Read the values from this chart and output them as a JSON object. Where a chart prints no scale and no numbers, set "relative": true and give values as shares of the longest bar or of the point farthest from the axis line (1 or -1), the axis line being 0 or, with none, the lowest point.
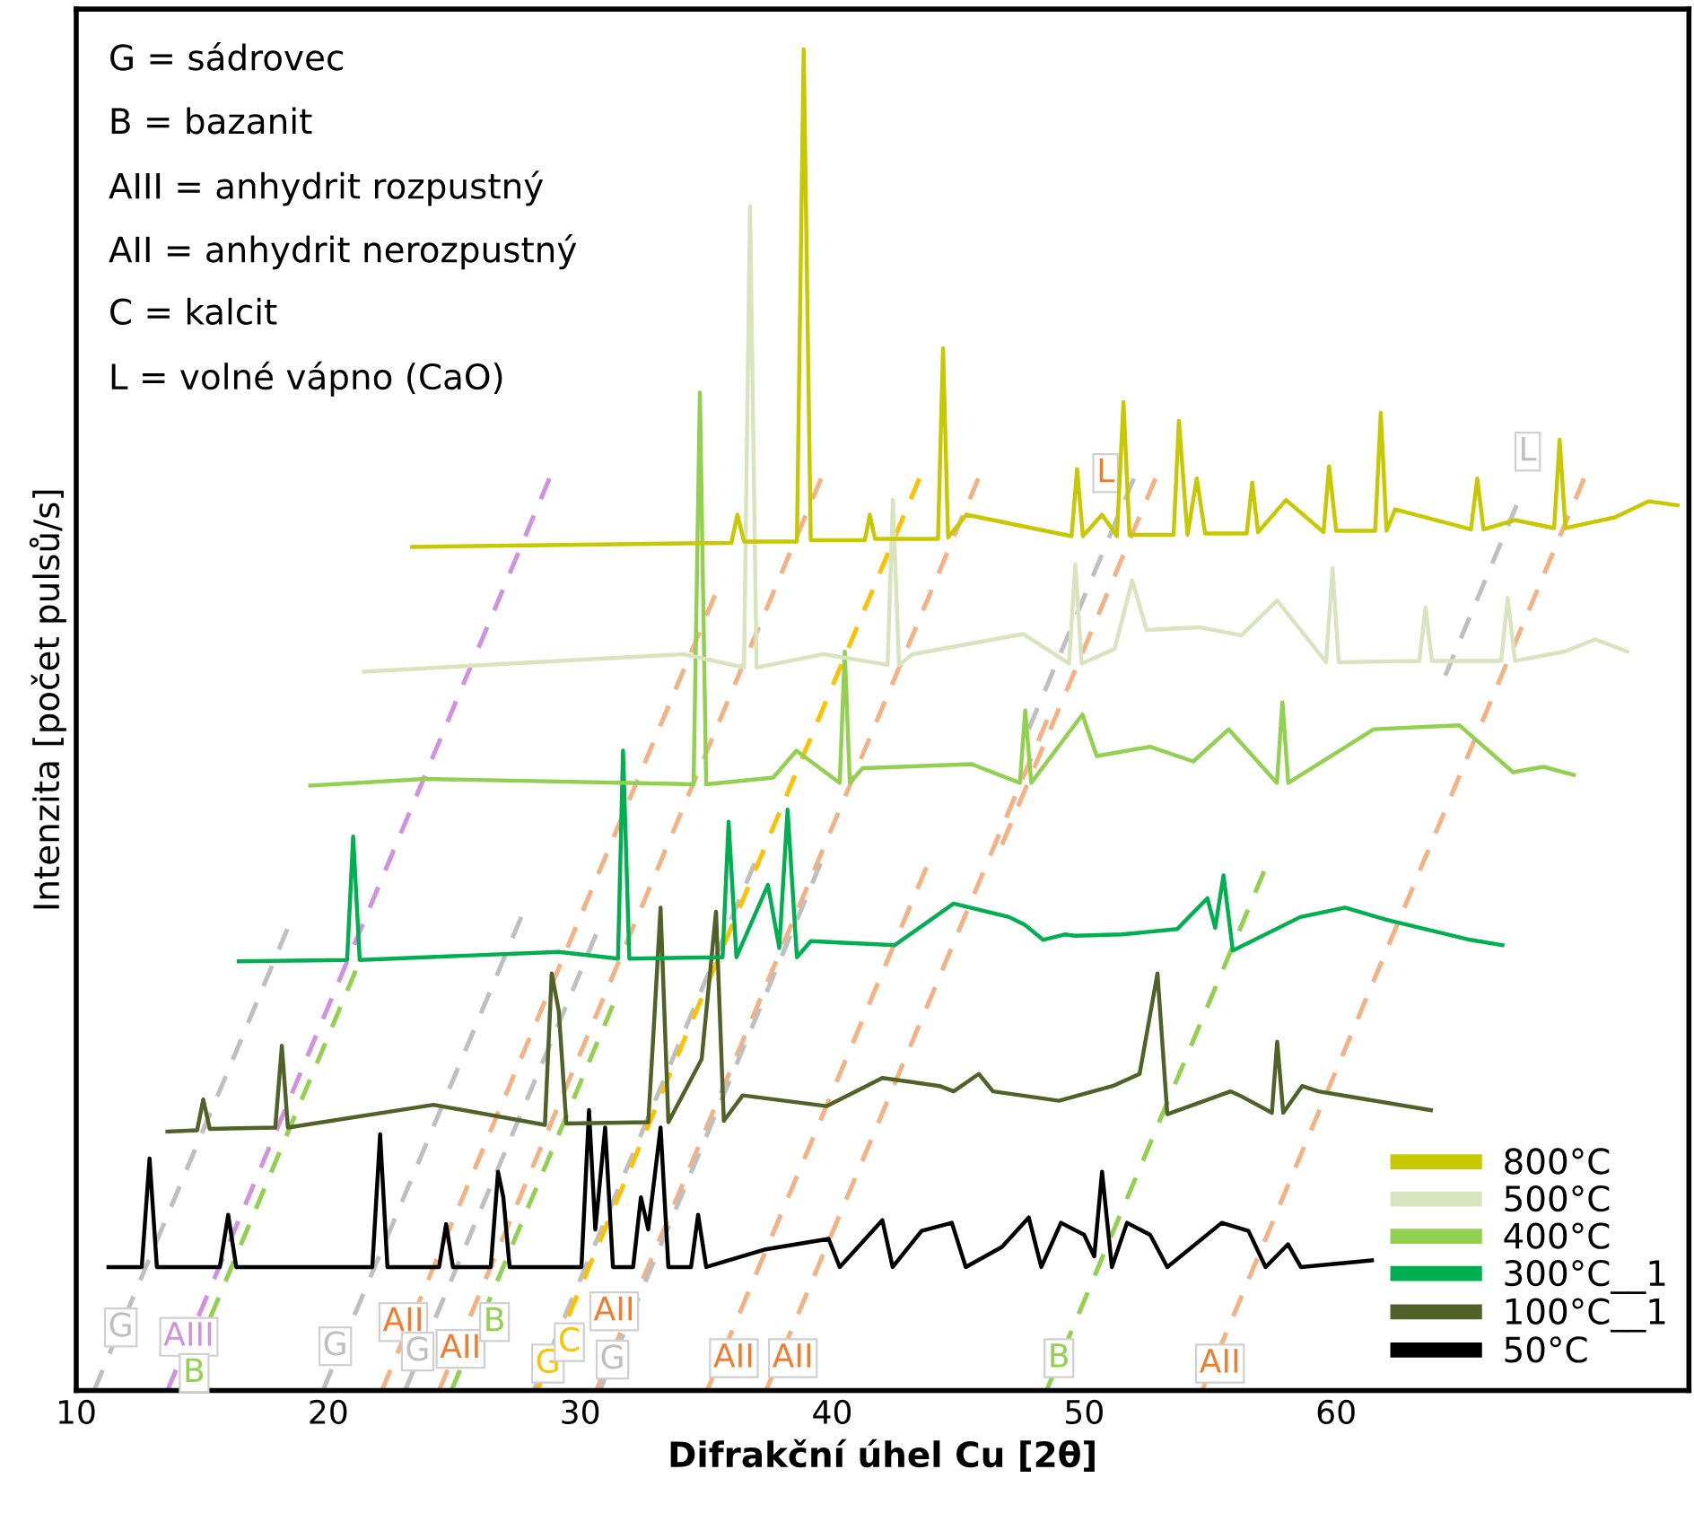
{
  "chart_data": {
    "type": "line",
    "relative": true,
    "xlabel": "Difrakční úhel Cu [2θ]",
    "ylabel": "Intenzita [počet pulsů/s]",
    "xlim": [
      10,
      74
    ],
    "xticks": [
      10,
      20,
      30,
      40,
      50,
      60
    ],
    "tick_labels": "x",
    "grid": false,
    "legend": "bottom right",
    "line_style": "solid",
    "marker": "none",
    "series": [
      {
        "name": "800°C",
        "color": "#c8c800",
        "x": [
          23.33,
          36.0,
          36.24,
          36.5,
          38.6,
          38.87,
          39.15,
          41.3,
          41.49,
          41.7,
          44.2,
          44.4,
          44.6,
          45.32,
          49.5,
          49.72,
          49.95,
          50.71,
          51.3,
          51.56,
          51.8,
          53.55,
          53.76,
          54.1,
          54.47,
          54.8,
          56.45,
          56.67,
          56.9,
          58.01,
          59.5,
          59.72,
          60.0,
          61.55,
          61.77,
          62.0,
          62.34,
          65.35,
          65.6,
          65.85,
          67.09,
          68.65,
          68.87,
          69.1,
          71.06,
          72.41,
          73.55
        ],
        "values": [
          0.629,
          0.632,
          0.653,
          0.633,
          0.633,
          1.0,
          0.634,
          0.634,
          0.653,
          0.635,
          0.635,
          0.777,
          0.636,
          0.653,
          0.637,
          0.687,
          0.637,
          0.653,
          0.637,
          0.737,
          0.638,
          0.638,
          0.723,
          0.638,
          0.68,
          0.639,
          0.639,
          0.677,
          0.64,
          0.664,
          0.64,
          0.689,
          0.641,
          0.641,
          0.729,
          0.641,
          0.657,
          0.642,
          0.68,
          0.642,
          0.649,
          0.643,
          0.709,
          0.643,
          0.651,
          0.663,
          0.66
        ]
      },
      {
        "name": "500°C",
        "color": "#d7e4bd",
        "x": [
          21.42,
          34.11,
          36.5,
          36.74,
          37.0,
          39.65,
          42.2,
          42.41,
          42.65,
          43.19,
          47.59,
          49.4,
          49.65,
          49.9,
          51.21,
          51.91,
          52.48,
          54.61,
          56.24,
          57.66,
          59.6,
          59.86,
          60.1,
          63.3,
          63.55,
          63.8,
          66.55,
          66.81,
          67.1,
          69.08,
          70.28,
          71.56
        ],
        "values": [
          0.536,
          0.549,
          0.539,
          0.883,
          0.539,
          0.549,
          0.541,
          0.664,
          0.541,
          0.549,
          0.564,
          0.542,
          0.616,
          0.542,
          0.553,
          0.604,
          0.567,
          0.569,
          0.563,
          0.589,
          0.543,
          0.613,
          0.543,
          0.544,
          0.584,
          0.544,
          0.544,
          0.591,
          0.544,
          0.551,
          0.56,
          0.551
        ]
      },
      {
        "name": "400°C",
        "color": "#92d050",
        "x": [
          19.29,
          23.83,
          34.5,
          34.75,
          35.0,
          37.66,
          38.58,
          40.3,
          40.5,
          40.7,
          41.21,
          45.53,
          47.45,
          47.66,
          47.9,
          49.93,
          50.5,
          52.62,
          54.33,
          55.74,
          57.65,
          57.87,
          58.1,
          61.49,
          64.89,
          67.02,
          68.23,
          69.43
        ],
        "values": [
          0.451,
          0.456,
          0.452,
          0.744,
          0.452,
          0.457,
          0.477,
          0.453,
          0.551,
          0.453,
          0.464,
          0.467,
          0.453,
          0.507,
          0.453,
          0.504,
          0.473,
          0.48,
          0.469,
          0.493,
          0.453,
          0.513,
          0.453,
          0.493,
          0.496,
          0.461,
          0.465,
          0.459
        ]
      },
      {
        "name": "300°C__1",
        "color": "#00b050",
        "x": [
          16.45,
          20.75,
          20.99,
          21.25,
          29.15,
          31.5,
          31.7,
          31.95,
          35.65,
          35.89,
          36.2,
          37.45,
          37.9,
          38.23,
          38.6,
          39.15,
          42.48,
          44.82,
          47.02,
          47.66,
          48.37,
          49.22,
          49.65,
          51.49,
          53.69,
          54.89,
          55.2,
          55.53,
          55.9,
          58.58,
          60.35,
          61.99,
          65.32,
          66.6
        ],
        "values": [
          0.32,
          0.321,
          0.413,
          0.321,
          0.327,
          0.322,
          0.477,
          0.322,
          0.323,
          0.424,
          0.323,
          0.377,
          0.33,
          0.433,
          0.323,
          0.335,
          0.332,
          0.363,
          0.353,
          0.347,
          0.336,
          0.34,
          0.339,
          0.34,
          0.344,
          0.367,
          0.345,
          0.384,
          0.328,
          0.353,
          0.36,
          0.351,
          0.336,
          0.332
        ]
      },
      {
        "name": "100°C__1",
        "color": "#4f6228",
        "x": [
          13.62,
          14.8,
          15.04,
          15.3,
          17.9,
          18.16,
          18.4,
          24.18,
          28.6,
          28.87,
          29.15,
          29.45,
          32.7,
          32.91,
          33.19,
          33.5,
          34.82,
          35.39,
          35.7,
          36.45,
          39.79,
          41.99,
          44.26,
          44.82,
          45.82,
          46.38,
          49.0,
          51.13,
          52.2,
          52.91,
          53.3,
          55.82,
          56.17,
          57.45,
          57.66,
          57.9,
          58.65,
          59.29,
          63.76
        ],
        "values": [
          0.193,
          0.194,
          0.217,
          0.195,
          0.196,
          0.257,
          0.196,
          0.213,
          0.198,
          0.311,
          0.283,
          0.199,
          0.2,
          0.267,
          0.36,
          0.2,
          0.247,
          0.357,
          0.201,
          0.22,
          0.212,
          0.233,
          0.227,
          0.223,
          0.236,
          0.223,
          0.216,
          0.227,
          0.236,
          0.311,
          0.206,
          0.223,
          0.22,
          0.207,
          0.26,
          0.207,
          0.227,
          0.223,
          0.209
        ]
      },
      {
        "name": "50°C",
        "color": "#000000",
        "x": [
          11.28,
          12.6,
          12.91,
          13.2,
          15.7,
          16.03,
          16.35,
          21.75,
          22.06,
          22.35,
          24.4,
          24.68,
          24.95,
          26.45,
          26.74,
          26.95,
          27.2,
          30.05,
          30.35,
          30.6,
          30.99,
          31.3,
          32.1,
          32.41,
          32.7,
          33.19,
          33.5,
          34.4,
          34.68,
          35.0,
          37.3,
          39.86,
          40.3,
          41.99,
          42.4,
          43.55,
          44.75,
          45.3,
          46.74,
          47.8,
          48.3,
          49.08,
          50.0,
          50.4,
          50.71,
          51.1,
          51.7,
          52.62,
          53.3,
          55.46,
          56.52,
          57.2,
          58.09,
          58.6,
          61.42
        ],
        "values": [
          0.092,
          0.092,
          0.173,
          0.092,
          0.092,
          0.131,
          0.092,
          0.092,
          0.191,
          0.092,
          0.092,
          0.124,
          0.092,
          0.092,
          0.163,
          0.144,
          0.092,
          0.092,
          0.209,
          0.12,
          0.196,
          0.092,
          0.092,
          0.144,
          0.12,
          0.196,
          0.092,
          0.092,
          0.131,
          0.092,
          0.105,
          0.113,
          0.092,
          0.127,
          0.092,
          0.119,
          0.125,
          0.092,
          0.107,
          0.129,
          0.092,
          0.125,
          0.116,
          0.1,
          0.163,
          0.092,
          0.125,
          0.116,
          0.092,
          0.125,
          0.119,
          0.092,
          0.109,
          0.092,
          0.097
        ]
      },
      {
        "color": "#bfbfbf",
        "line_style": "dashed",
        "x": [
          10.71,
          18.38
        ],
        "values": [
          0,
          0.344
        ]
      },
      {
        "color": "#d291e0",
        "line_style": "dashed",
        "x": [
          13.62,
          28.78
        ],
        "values": [
          0,
          0.68
        ]
      },
      {
        "color": "#92d050",
        "line_style": "dashed",
        "x": [
          14.11,
          21.09
        ],
        "values": [
          0,
          0.313
        ]
      },
      {
        "color": "#bfbfbf",
        "line_style": "dashed",
        "x": [
          19.79,
          27.66
        ],
        "values": [
          0,
          0.353
        ]
      },
      {
        "color": "#f4b183",
        "line_style": "dashed",
        "x": [
          22.13,
          35.35
        ],
        "values": [
          0,
          0.593
        ]
      },
      {
        "color": "#bfbfbf",
        "line_style": "dashed",
        "x": [
          23.05,
          30.63
        ],
        "values": [
          0,
          0.34
        ]
      },
      {
        "color": "#f4b183",
        "line_style": "dashed",
        "x": [
          24.4,
          39.56
        ],
        "values": [
          0,
          0.68
        ]
      },
      {
        "color": "#92d050",
        "line_style": "dashed",
        "x": [
          24.89,
          31.29
        ],
        "values": [
          0,
          0.287
        ]
      },
      {
        "color": "#bfbfbf",
        "line_style": "dashed",
        "x": [
          28.16,
          36.92
        ],
        "values": [
          0,
          0.393
        ]
      },
      {
        "color": "#ffc000",
        "line_style": "dashed",
        "x": [
          28.3,
          43.46
        ],
        "values": [
          0,
          0.68
        ]
      },
      {
        "color": "#f4b183",
        "line_style": "dashed",
        "x": [
          30.64,
          45.8
        ],
        "values": [
          0,
          0.68
        ]
      },
      {
        "color": "#bfbfbf",
        "line_style": "dashed",
        "x": [
          30.78,
          39.54
        ],
        "values": [
          0,
          0.393
        ]
      },
      {
        "color": "#f4b183",
        "line_style": "dashed",
        "x": [
          35.04,
          43.74
        ],
        "values": [
          0,
          0.39
        ]
      },
      {
        "color": "#f4b183",
        "line_style": "dashed",
        "x": [
          37.38,
          48.53
        ],
        "values": [
          0,
          0.5
        ]
      },
      {
        "color": "#f4b183",
        "line_style": "dashed",
        "x": [
          46.74,
          52.83
        ],
        "values": [
          0.407,
          0.68
        ]
      },
      {
        "color": "#bfbfbf",
        "line_style": "dashed",
        "x": [
          47.8,
          51.97
        ],
        "values": [
          0.493,
          0.68
        ]
      },
      {
        "color": "#92d050",
        "line_style": "dashed",
        "x": [
          48.51,
          57.14
        ],
        "values": [
          0,
          0.387
        ]
      },
      {
        "color": "#f4b183",
        "line_style": "dashed",
        "x": [
          54.68,
          69.84
        ],
        "values": [
          0,
          0.68
        ]
      },
      {
        "color": "#bfbfbf",
        "line_style": "dashed",
        "x": [
          64.33,
          67.16
        ],
        "values": [
          0.533,
          0.66
        ]
      }
    ],
    "annotations": [
      "G = sádrovec",
      "B = bazanit",
      "AIII = anhydrit rozpustný",
      "AII = anhydrit nerozpustný",
      "C = kalcit",
      "L = volné vápno (CaO)",
      {
        "text": "G",
        "x": 11.77,
        "y": 0.047
      },
      {
        "text": "AIII",
        "x": 14.47,
        "y": 0.04
      },
      {
        "text": "B",
        "x": 14.68,
        "y": 0.013
      },
      {
        "text": "G",
        "x": 20.28,
        "y": 0.033
      },
      {
        "text": "AII",
        "x": 22.98,
        "y": 0.051
      },
      {
        "text": "G",
        "x": 23.55,
        "y": 0.029
      },
      {
        "text": "AII",
        "x": 25.25,
        "y": 0.031
      },
      {
        "text": "B",
        "x": 26.6,
        "y": 0.051
      },
      {
        "text": "G",
        "x": 28.72,
        "y": 0.02
      },
      {
        "text": "C",
        "x": 29.57,
        "y": 0.036
      },
      {
        "text": "AII",
        "x": 31.35,
        "y": 0.059
      },
      {
        "text": "G",
        "x": 31.28,
        "y": 0.023
      },
      {
        "text": "AII",
        "x": 36.1,
        "y": 0.024
      },
      {
        "text": "AII",
        "x": 38.44,
        "y": 0.024
      },
      {
        "text": "B",
        "x": 49.0,
        "y": 0.024
      },
      {
        "text": "AII",
        "x": 55.39,
        "y": 0.02
      },
      {
        "text": "L",
        "x": 50.85,
        "y": 0.684
      },
      {
        "text": "L",
        "x": 67.6,
        "y": 0.7
      }
    ]
  }
}
